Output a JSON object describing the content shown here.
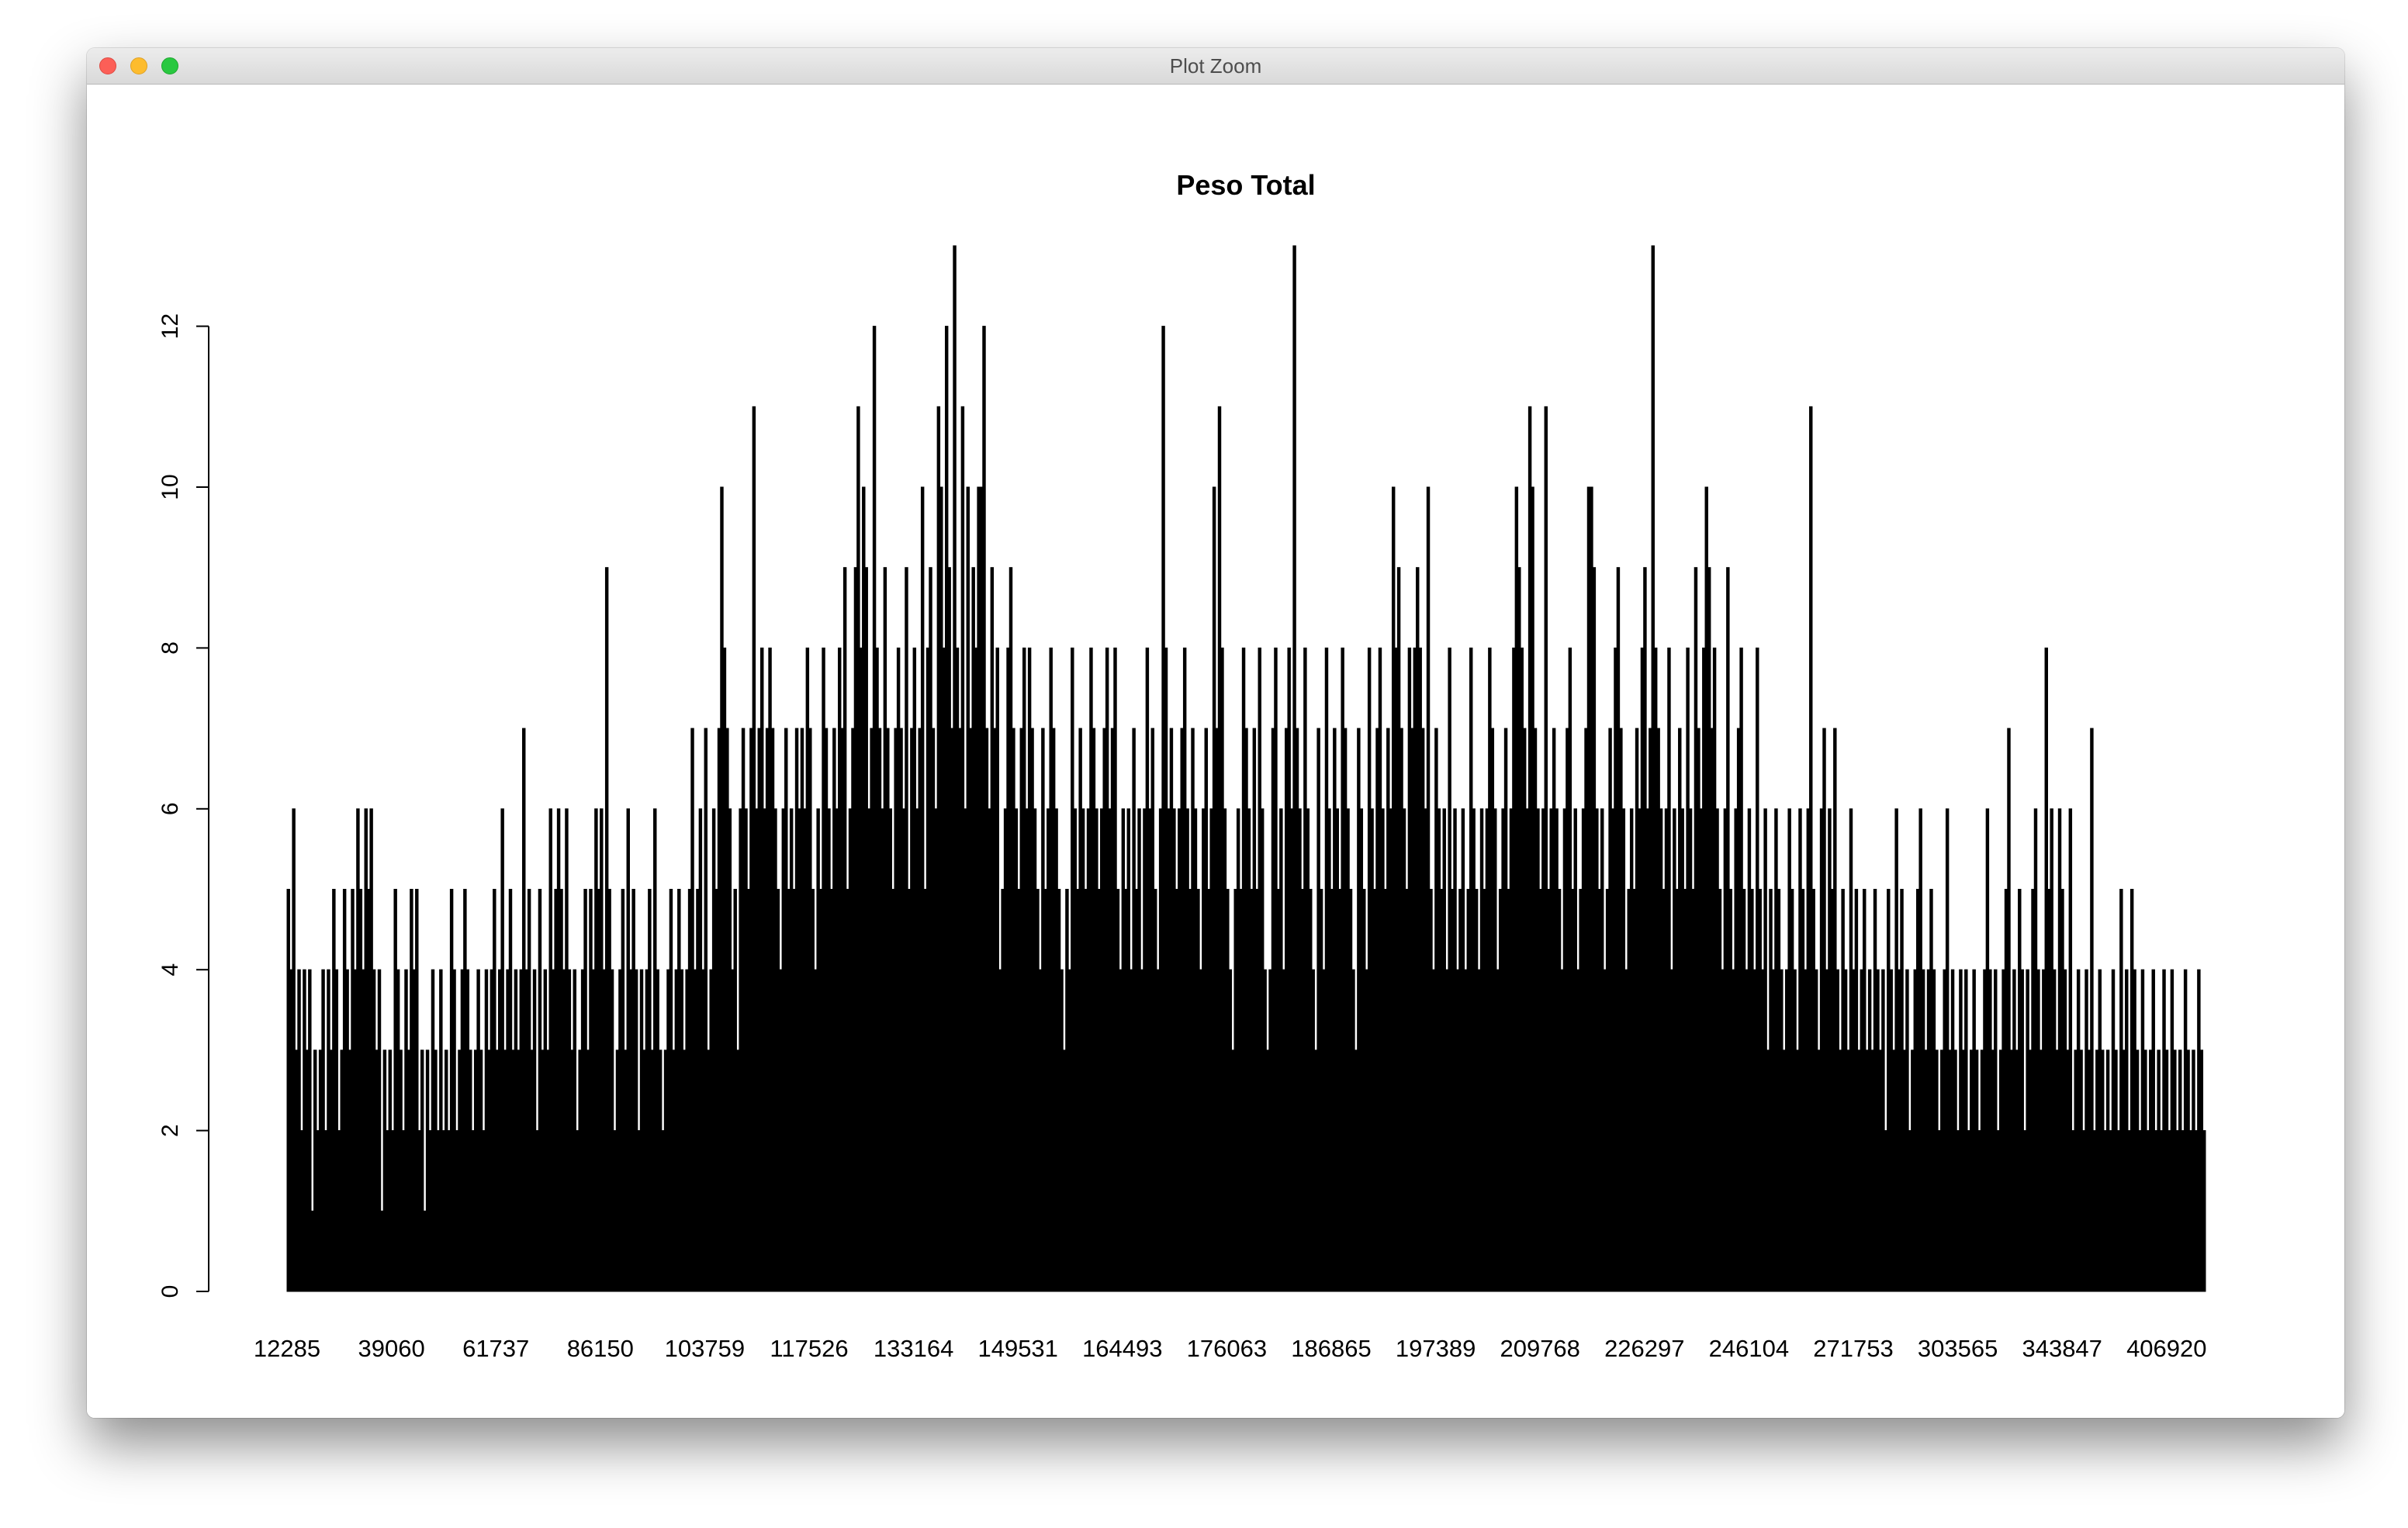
{
  "window": {
    "title": "Plot Zoom",
    "buttons": [
      "close",
      "minimize",
      "zoom"
    ]
  },
  "colors": {
    "bars": "#000000",
    "background": "#ffffff",
    "close": "#fc5f57",
    "minimize": "#fdbc2e",
    "zoom": "#29c840"
  },
  "chart_data": {
    "type": "bar",
    "title": "Peso Total",
    "xlabel": "",
    "ylabel": "",
    "ylim": [
      0,
      13
    ],
    "yticks": [
      0,
      2,
      4,
      6,
      8,
      10,
      12
    ],
    "x_tick_labels": [
      "12285",
      "39060",
      "61737",
      "86150",
      "103759",
      "117526",
      "133164",
      "149531",
      "164493",
      "176063",
      "186865",
      "197389",
      "209768",
      "226297",
      "246104",
      "271753",
      "303565",
      "343847",
      "406920"
    ],
    "grid": false,
    "legend": "none",
    "bar_count_approx": 1000,
    "values": [
      5,
      4,
      6,
      3,
      4,
      2,
      4,
      3,
      4,
      1,
      3,
      2,
      3,
      4,
      2,
      4,
      3,
      5,
      4,
      2,
      3,
      5,
      4,
      3,
      5,
      4,
      6,
      5,
      4,
      6,
      5,
      6,
      4,
      3,
      4,
      1,
      3,
      2,
      3,
      2,
      5,
      4,
      3,
      2,
      4,
      3,
      5,
      4,
      5,
      2,
      3,
      1,
      3,
      2,
      4,
      3,
      2,
      4,
      2,
      3,
      2,
      5,
      4,
      2,
      3,
      4,
      5,
      4,
      3,
      2,
      3,
      4,
      3,
      2,
      4,
      3,
      4,
      5,
      3,
      4,
      6,
      3,
      4,
      5,
      3,
      4,
      3,
      4,
      7,
      4,
      5,
      3,
      4,
      2,
      5,
      3,
      4,
      3,
      6,
      4,
      5,
      6,
      5,
      4,
      6,
      4,
      3,
      4,
      2,
      3,
      4,
      5,
      3,
      5,
      4,
      6,
      5,
      6,
      4,
      9,
      5,
      4,
      2,
      3,
      4,
      5,
      3,
      6,
      4,
      5,
      4,
      2,
      4,
      3,
      4,
      5,
      3,
      6,
      4,
      3,
      2,
      3,
      4,
      5,
      3,
      4,
      5,
      4,
      3,
      4,
      5,
      7,
      4,
      5,
      6,
      4,
      7,
      3,
      4,
      6,
      5,
      7,
      10,
      8,
      7,
      6,
      4,
      5,
      3,
      6,
      7,
      6,
      5,
      7,
      11,
      6,
      7,
      8,
      6,
      7,
      8,
      7,
      6,
      5,
      4,
      6,
      7,
      5,
      6,
      5,
      7,
      6,
      7,
      6,
      8,
      7,
      5,
      4,
      6,
      5,
      8,
      7,
      6,
      5,
      7,
      6,
      8,
      7,
      9,
      5,
      6,
      7,
      9,
      11,
      8,
      10,
      9,
      6,
      7,
      12,
      8,
      7,
      6,
      9,
      7,
      6,
      5,
      7,
      8,
      7,
      6,
      9,
      5,
      7,
      8,
      6,
      7,
      10,
      5,
      8,
      9,
      7,
      6,
      11,
      10,
      8,
      12,
      9,
      7,
      13,
      8,
      7,
      11,
      6,
      10,
      7,
      9,
      8,
      10,
      10,
      12,
      7,
      6,
      9,
      7,
      8,
      4,
      5,
      6,
      8,
      9,
      7,
      6,
      5,
      7,
      8,
      6,
      8,
      7,
      6,
      5,
      4,
      7,
      5,
      6,
      8,
      7,
      6,
      5,
      4,
      3,
      5,
      4,
      8,
      6,
      5,
      7,
      6,
      5,
      6,
      8,
      7,
      6,
      5,
      6,
      7,
      8,
      6,
      7,
      8,
      5,
      4,
      6,
      5,
      6,
      4,
      7,
      5,
      6,
      4,
      6,
      8,
      6,
      7,
      5,
      4,
      6,
      12,
      8,
      6,
      7,
      6,
      5,
      6,
      7,
      8,
      6,
      5,
      7,
      6,
      5,
      4,
      6,
      7,
      5,
      6,
      10,
      7,
      11,
      8,
      6,
      5,
      4,
      3,
      5,
      6,
      5,
      8,
      7,
      6,
      5,
      7,
      5,
      8,
      6,
      4,
      3,
      4,
      7,
      8,
      5,
      6,
      4,
      7,
      8,
      6,
      13,
      7,
      6,
      5,
      8,
      6,
      5,
      4,
      3,
      7,
      5,
      4,
      8,
      6,
      5,
      7,
      6,
      5,
      8,
      7,
      6,
      5,
      4,
      3,
      7,
      6,
      5,
      4,
      8,
      6,
      5,
      7,
      8,
      6,
      5,
      7,
      6,
      10,
      8,
      9,
      7,
      6,
      5,
      8,
      7,
      8,
      9,
      8,
      7,
      6,
      10,
      5,
      4,
      7,
      6,
      5,
      6,
      4,
      8,
      5,
      6,
      4,
      5,
      6,
      4,
      5,
      8,
      6,
      5,
      4,
      6,
      5,
      6,
      8,
      7,
      6,
      4,
      5,
      6,
      7,
      5,
      6,
      8,
      10,
      9,
      8,
      7,
      6,
      11,
      10,
      7,
      6,
      5,
      6,
      11,
      5,
      6,
      7,
      6,
      5,
      4,
      6,
      7,
      8,
      5,
      6,
      4,
      5,
      6,
      7,
      10,
      10,
      9,
      6,
      5,
      6,
      4,
      5,
      7,
      6,
      8,
      9,
      7,
      6,
      4,
      5,
      6,
      5,
      7,
      6,
      8,
      9,
      6,
      7,
      13,
      8,
      7,
      6,
      5,
      6,
      8,
      4,
      6,
      5,
      7,
      6,
      5,
      8,
      6,
      5,
      9,
      7,
      6,
      8,
      10,
      9,
      7,
      8,
      6,
      5,
      4,
      6,
      9,
      5,
      4,
      6,
      7,
      8,
      5,
      4,
      6,
      5,
      4,
      8,
      5,
      4,
      6,
      3,
      5,
      4,
      6,
      5,
      4,
      3,
      4,
      6,
      5,
      4,
      3,
      6,
      5,
      4,
      6,
      11,
      5,
      4,
      3,
      6,
      7,
      4,
      6,
      5,
      7,
      4,
      3,
      5,
      4,
      3,
      6,
      4,
      5,
      3,
      4,
      5,
      3,
      4,
      3,
      5,
      4,
      3,
      4,
      2,
      5,
      4,
      3,
      6,
      4,
      5,
      3,
      4,
      2,
      3,
      4,
      5,
      6,
      4,
      3,
      4,
      5,
      4,
      3,
      2,
      3,
      4,
      6,
      3,
      4,
      3,
      2,
      4,
      3,
      4,
      2,
      3,
      4,
      3,
      2,
      3,
      4,
      6,
      4,
      3,
      4,
      2,
      3,
      4,
      5,
      7,
      3,
      4,
      3,
      5,
      4,
      2,
      4,
      3,
      5,
      6,
      4,
      3,
      4,
      8,
      5,
      6,
      4,
      3,
      6,
      5,
      4,
      3,
      6,
      2,
      3,
      4,
      3,
      2,
      4,
      3,
      7,
      2,
      3,
      4,
      3,
      2,
      3,
      2,
      4,
      3,
      2,
      5,
      3,
      4,
      2,
      5,
      4,
      3,
      2,
      4,
      3,
      2,
      3,
      4,
      2,
      3,
      2,
      4,
      3,
      2,
      4,
      3,
      2,
      3,
      2,
      4,
      3,
      2,
      3,
      2,
      4,
      3,
      2
    ]
  }
}
